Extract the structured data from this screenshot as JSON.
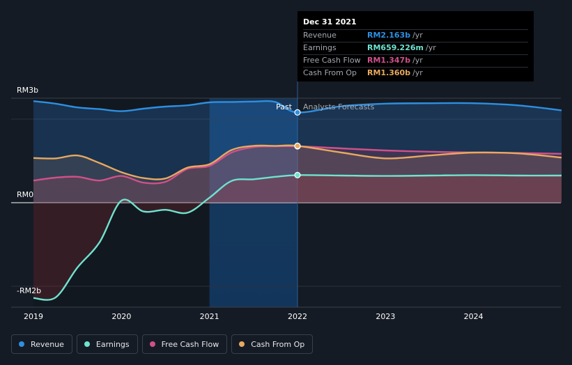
{
  "tooltip": {
    "date": "Dec 31 2021",
    "rows": [
      {
        "label": "Revenue",
        "value": "RM2.163b",
        "unit": "/yr",
        "color": "#2e8fe0"
      },
      {
        "label": "Earnings",
        "value": "RM659.226m",
        "unit": "/yr",
        "color": "#6fe3cf"
      },
      {
        "label": "Free Cash Flow",
        "value": "RM1.347b",
        "unit": "/yr",
        "color": "#d0508a"
      },
      {
        "label": "Cash From Op",
        "value": "RM1.360b",
        "unit": "/yr",
        "color": "#e8a960"
      }
    ]
  },
  "annotations": {
    "past": "Past",
    "forecast": "Analysts Forecasts"
  },
  "legend": [
    {
      "name": "Revenue",
      "color": "#2e8fe0"
    },
    {
      "name": "Earnings",
      "color": "#6fe3cf"
    },
    {
      "name": "Free Cash Flow",
      "color": "#d0508a"
    },
    {
      "name": "Cash From Op",
      "color": "#e8a960"
    }
  ],
  "chart_data": {
    "type": "line",
    "y_unit": "RM billions",
    "ylim": [
      -2.3,
      2.5
    ],
    "y_ticks": [
      {
        "value": 2.5,
        "label": "RM3b"
      },
      {
        "value": 0,
        "label": "RM0"
      },
      {
        "value": -2.3,
        "label": "-RM2b"
      }
    ],
    "x_ticks": [
      "2019",
      "2020",
      "2021",
      "2022",
      "2023",
      "2024"
    ],
    "xlim": [
      2019.0,
      2025.0
    ],
    "past_end": 2022.0,
    "highlight_start": 2021.0,
    "series": [
      {
        "name": "Revenue",
        "color": "#2e8fe0",
        "x": [
          2019.0,
          2019.25,
          2019.5,
          2019.75,
          2020.0,
          2020.25,
          2020.5,
          2020.75,
          2021.0,
          2021.25,
          2021.5,
          2021.75,
          2022.0,
          2022.5,
          2023.0,
          2023.5,
          2024.0,
          2024.5,
          2025.0
        ],
        "values": [
          2.43,
          2.37,
          2.28,
          2.24,
          2.19,
          2.25,
          2.3,
          2.33,
          2.4,
          2.41,
          2.42,
          2.41,
          2.16,
          2.31,
          2.37,
          2.38,
          2.38,
          2.33,
          2.21
        ]
      },
      {
        "name": "Earnings",
        "color": "#6fe3cf",
        "x": [
          2019.0,
          2019.25,
          2019.5,
          2019.75,
          2020.0,
          2020.25,
          2020.5,
          2020.75,
          2021.0,
          2021.25,
          2021.5,
          2021.75,
          2022.0,
          2022.5,
          2023.0,
          2023.5,
          2024.0,
          2024.5,
          2025.0
        ],
        "values": [
          -2.28,
          -2.27,
          -1.55,
          -0.95,
          0.05,
          -0.21,
          -0.17,
          -0.24,
          0.12,
          0.52,
          0.56,
          0.62,
          0.66,
          0.65,
          0.64,
          0.65,
          0.66,
          0.65,
          0.65
        ]
      },
      {
        "name": "Free Cash Flow",
        "color": "#d0508a",
        "x": [
          2019.0,
          2019.25,
          2019.5,
          2019.75,
          2020.0,
          2020.25,
          2020.5,
          2020.75,
          2021.0,
          2021.25,
          2021.5,
          2021.75,
          2022.0,
          2022.5,
          2023.0,
          2023.5,
          2024.0,
          2024.5,
          2025.0
        ],
        "values": [
          0.53,
          0.6,
          0.62,
          0.53,
          0.64,
          0.48,
          0.5,
          0.81,
          0.88,
          1.2,
          1.33,
          1.35,
          1.35,
          1.3,
          1.25,
          1.22,
          1.2,
          1.19,
          1.17
        ]
      },
      {
        "name": "Cash From Op",
        "color": "#e8a960",
        "x": [
          2019.0,
          2019.25,
          2019.5,
          2019.75,
          2020.0,
          2020.25,
          2020.5,
          2020.75,
          2021.0,
          2021.25,
          2021.5,
          2021.75,
          2022.0,
          2022.5,
          2023.0,
          2023.5,
          2024.0,
          2024.5,
          2025.0
        ],
        "values": [
          1.07,
          1.06,
          1.13,
          0.95,
          0.73,
          0.59,
          0.58,
          0.84,
          0.92,
          1.26,
          1.36,
          1.36,
          1.36,
          1.2,
          1.06,
          1.13,
          1.2,
          1.18,
          1.08
        ]
      }
    ]
  }
}
